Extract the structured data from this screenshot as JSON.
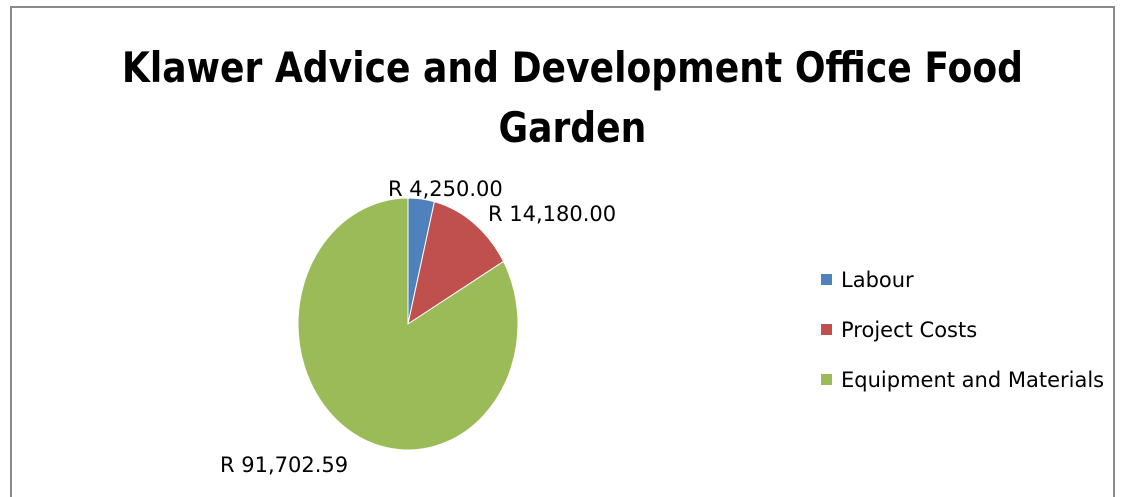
{
  "chart_data": {
    "type": "pie",
    "title": "Klawer Advice and Development Office Food Garden",
    "categories": [
      "Labour",
      "Project Costs",
      "Equipment and Materials"
    ],
    "values": [
      4250.0,
      14180.0,
      91702.59
    ],
    "data_labels": [
      "R 4,250.00",
      "R 14,180.00",
      "R 91,702.59"
    ],
    "colors": [
      "#4f81bd",
      "#c0504d",
      "#9bbb59"
    ],
    "legend_position": "right",
    "start_angle": "12 o'clock",
    "direction": "clockwise"
  },
  "legend": {
    "items": [
      {
        "label": "Labour",
        "color": "#4f81bd"
      },
      {
        "label": "Project Costs",
        "color": "#c0504d"
      },
      {
        "label": "Equipment and Materials",
        "color": "#9bbb59"
      }
    ]
  }
}
